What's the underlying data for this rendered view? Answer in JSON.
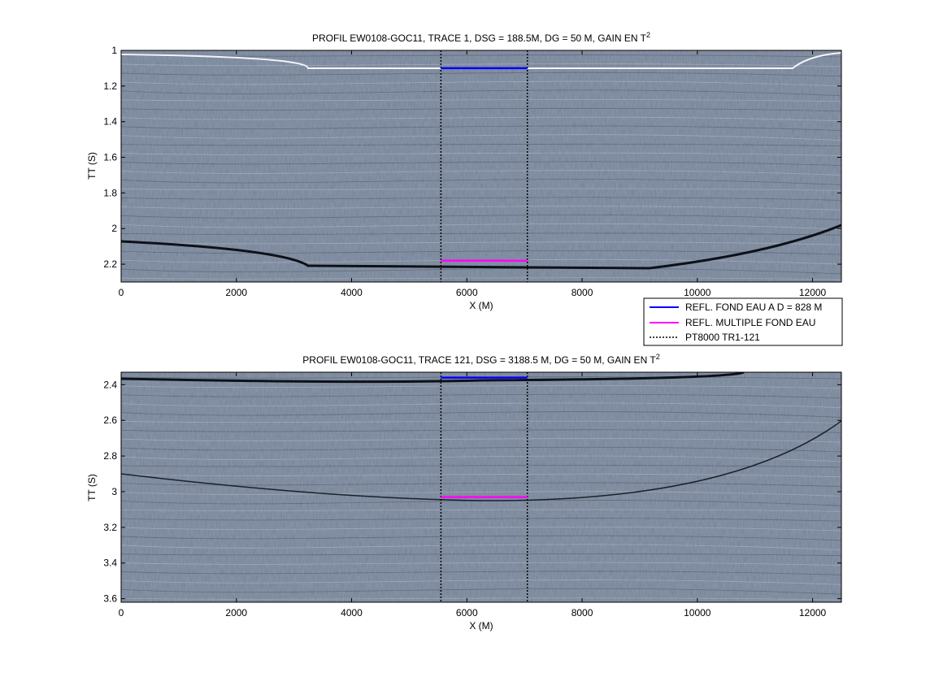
{
  "figure": {
    "legend": {
      "entries": [
        {
          "label": "REFL. FOND EAU A D = 828 M",
          "color": "#0000ff",
          "style": "solid"
        },
        {
          "label": "REFL. MULTIPLE FOND EAU",
          "color": "#ff00ff",
          "style": "solid"
        },
        {
          "label": "PT8000 TR1-121",
          "color": "#000000",
          "style": "dotted"
        }
      ]
    }
  },
  "colors": {
    "seismic_background": "#74839a",
    "reflection_blue": "#0000ff",
    "reflection_magenta": "#ff00ff",
    "marker_black": "#000000"
  },
  "chart_data": [
    {
      "type": "heatmap",
      "title": "PROFIL EW0108-GOC11, TRACE 1, DSG = 188.5M, DG = 50 M, GAIN EN T",
      "title_sup": "2",
      "xlabel": "X (M)",
      "ylabel": "TT (S)",
      "xlim": [
        0,
        12500
      ],
      "ylim": [
        1.0,
        2.3
      ],
      "y_reversed": true,
      "xticks": [
        0,
        2000,
        4000,
        6000,
        8000,
        10000,
        12000
      ],
      "yticks": [
        1,
        1.2,
        1.4,
        1.6,
        1.8,
        2,
        2.2
      ],
      "vertical_markers_x": [
        5550,
        7050
      ],
      "series": [
        {
          "name": "REFL. FOND EAU A D = 828 M",
          "x": [
            5550,
            7050
          ],
          "y": [
            1.1,
            1.1
          ]
        },
        {
          "name": "REFL. MULTIPLE FOND EAU",
          "x": [
            5550,
            7050
          ],
          "y": [
            2.18,
            2.18
          ]
        }
      ]
    },
    {
      "type": "heatmap",
      "title": "PROFIL EW0108-GOC11, TRACE 121, DSG = 3188.5 M, DG = 50 M, GAIN EN T",
      "title_sup": "2",
      "xlabel": "X (M)",
      "ylabel": "TT (S)",
      "xlim": [
        0,
        12500
      ],
      "ylim": [
        2.33,
        3.62
      ],
      "y_reversed": true,
      "xticks": [
        0,
        2000,
        4000,
        6000,
        8000,
        10000,
        12000
      ],
      "yticks": [
        2.4,
        2.6,
        2.8,
        3,
        3.2,
        3.4,
        3.6
      ],
      "vertical_markers_x": [
        5550,
        7050
      ],
      "series": [
        {
          "name": "REFL. FOND EAU A D = 828 M",
          "x": [
            5550,
            7050
          ],
          "y": [
            2.36,
            2.36
          ]
        },
        {
          "name": "REFL. MULTIPLE FOND EAU",
          "x": [
            5550,
            7050
          ],
          "y": [
            3.03,
            3.03
          ]
        }
      ]
    }
  ]
}
